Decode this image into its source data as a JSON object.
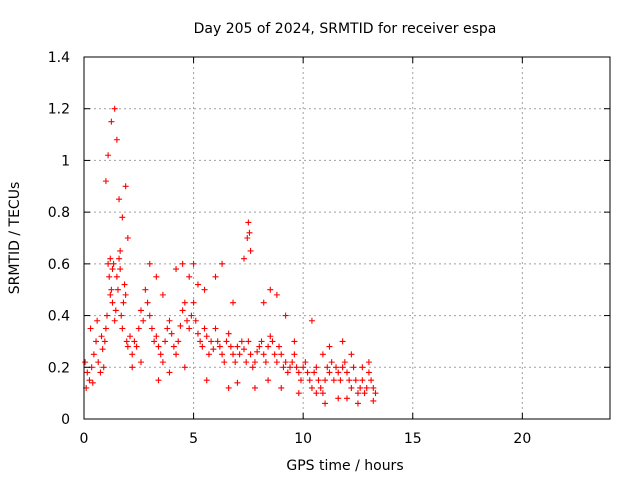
{
  "chart_data": {
    "type": "scatter",
    "title": "Day 205 of 2024, SRMTID for receiver espa",
    "xlabel": "GPS time / hours",
    "ylabel": "SRMTID / TECUs",
    "xlim": [
      0,
      24
    ],
    "ylim": [
      0,
      1.4
    ],
    "xticks": [
      0,
      5,
      10,
      15,
      20
    ],
    "xtick_labels": [
      "0",
      "5",
      "10",
      "15",
      "20"
    ],
    "yticks": [
      0,
      0.2,
      0.4,
      0.6,
      0.8,
      1.0,
      1.2,
      1.4
    ],
    "ytick_labels": [
      "0",
      "0.2",
      "0.4",
      "0.6",
      "0.8",
      "1",
      "1.2",
      "1.4"
    ],
    "grid": true,
    "marker": "plus",
    "color": "#ff0000",
    "series": [
      {
        "name": "SRMTID",
        "x": [
          0.05,
          0.15,
          0.25,
          0.35,
          0.45,
          0.55,
          0.65,
          0.75,
          0.85,
          0.95,
          1.0,
          1.05,
          1.1,
          1.15,
          1.2,
          1.25,
          1.3,
          1.35,
          1.4,
          1.45,
          1.5,
          1.55,
          1.6,
          1.65,
          1.7,
          1.75,
          1.8,
          1.85,
          1.9,
          1.95,
          2.0,
          2.1,
          2.2,
          2.3,
          2.4,
          2.5,
          2.6,
          2.7,
          2.8,
          2.9,
          3.0,
          3.1,
          3.2,
          3.3,
          3.4,
          3.5,
          3.6,
          3.7,
          3.8,
          3.9,
          4.0,
          4.1,
          4.2,
          4.3,
          4.4,
          4.5,
          4.6,
          4.7,
          4.8,
          4.9,
          5.0,
          5.1,
          5.2,
          5.3,
          5.4,
          5.5,
          5.6,
          5.7,
          5.8,
          5.9,
          6.0,
          6.1,
          6.2,
          6.3,
          6.4,
          6.5,
          6.6,
          6.7,
          6.8,
          6.9,
          7.0,
          7.1,
          7.2,
          7.3,
          7.4,
          7.5,
          7.6,
          7.7,
          7.8,
          7.9,
          8.0,
          8.1,
          8.2,
          8.3,
          8.4,
          8.5,
          8.6,
          8.7,
          8.8,
          8.9,
          9.0,
          9.1,
          9.2,
          9.3,
          9.4,
          9.5,
          9.6,
          9.7,
          9.8,
          9.9,
          10.0,
          10.1,
          10.2,
          10.3,
          10.4,
          10.5,
          10.6,
          10.7,
          10.8,
          10.9,
          11.0,
          11.1,
          11.2,
          11.3,
          11.4,
          11.5,
          11.6,
          11.7,
          11.8,
          11.9,
          12.0,
          12.1,
          12.2,
          12.3,
          12.4,
          12.5,
          12.6,
          12.7,
          12.8,
          12.9,
          13.0,
          13.1,
          13.2,
          13.3,
          1.0,
          1.1,
          1.25,
          1.4,
          1.5,
          1.6,
          1.75,
          1.9,
          2.0,
          0.3,
          0.6,
          0.8,
          3.0,
          3.3,
          3.6,
          4.2,
          4.5,
          4.8,
          5.0,
          5.2,
          5.5,
          6.0,
          6.3,
          6.8,
          7.3,
          7.45,
          7.5,
          7.55,
          7.6,
          8.2,
          8.5,
          8.8,
          9.2,
          9.6,
          10.4,
          10.9,
          11.2,
          11.8,
          12.2,
          12.7,
          13.0,
          0.1,
          0.4,
          0.9,
          1.2,
          1.3,
          1.65,
          2.2,
          2.6,
          3.4,
          3.9,
          4.6,
          5.6,
          6.6,
          7.0,
          7.8,
          8.4,
          9.0,
          9.8,
          10.6,
          11.0,
          11.6,
          12.0,
          12.5,
          13.2
        ],
        "y": [
          0.22,
          0.18,
          0.15,
          0.2,
          0.25,
          0.3,
          0.22,
          0.18,
          0.27,
          0.3,
          0.35,
          0.4,
          0.6,
          0.55,
          0.48,
          0.5,
          0.45,
          0.6,
          0.38,
          0.42,
          0.55,
          0.5,
          0.62,
          0.58,
          0.4,
          0.35,
          0.45,
          0.52,
          0.48,
          0.3,
          0.28,
          0.32,
          0.25,
          0.3,
          0.28,
          0.35,
          0.42,
          0.38,
          0.5,
          0.45,
          0.4,
          0.35,
          0.3,
          0.32,
          0.28,
          0.25,
          0.22,
          0.3,
          0.35,
          0.38,
          0.33,
          0.28,
          0.25,
          0.3,
          0.36,
          0.42,
          0.45,
          0.38,
          0.35,
          0.4,
          0.45,
          0.38,
          0.33,
          0.3,
          0.28,
          0.35,
          0.32,
          0.25,
          0.3,
          0.27,
          0.35,
          0.3,
          0.28,
          0.25,
          0.22,
          0.3,
          0.33,
          0.28,
          0.25,
          0.22,
          0.28,
          0.25,
          0.3,
          0.27,
          0.22,
          0.3,
          0.25,
          0.2,
          0.22,
          0.26,
          0.28,
          0.3,
          0.25,
          0.22,
          0.28,
          0.32,
          0.3,
          0.25,
          0.22,
          0.28,
          0.25,
          0.2,
          0.22,
          0.18,
          0.2,
          0.22,
          0.25,
          0.2,
          0.18,
          0.15,
          0.2,
          0.22,
          0.18,
          0.15,
          0.12,
          0.18,
          0.2,
          0.15,
          0.12,
          0.1,
          0.15,
          0.2,
          0.18,
          0.22,
          0.15,
          0.2,
          0.18,
          0.15,
          0.2,
          0.22,
          0.18,
          0.15,
          0.12,
          0.2,
          0.15,
          0.1,
          0.12,
          0.15,
          0.1,
          0.12,
          0.18,
          0.15,
          0.12,
          0.1,
          0.92,
          1.02,
          1.15,
          1.2,
          1.08,
          0.85,
          0.78,
          0.9,
          0.7,
          0.35,
          0.38,
          0.32,
          0.6,
          0.55,
          0.48,
          0.58,
          0.6,
          0.55,
          0.6,
          0.52,
          0.5,
          0.55,
          0.6,
          0.45,
          0.62,
          0.7,
          0.76,
          0.72,
          0.65,
          0.45,
          0.5,
          0.48,
          0.4,
          0.3,
          0.38,
          0.25,
          0.28,
          0.3,
          0.25,
          0.2,
          0.22,
          0.12,
          0.14,
          0.2,
          0.62,
          0.58,
          0.65,
          0.2,
          0.22,
          0.15,
          0.18,
          0.2,
          0.15,
          0.12,
          0.14,
          0.12,
          0.15,
          0.12,
          0.1,
          0.1,
          0.06,
          0.08,
          0.08,
          0.06,
          0.07
        ]
      }
    ]
  }
}
